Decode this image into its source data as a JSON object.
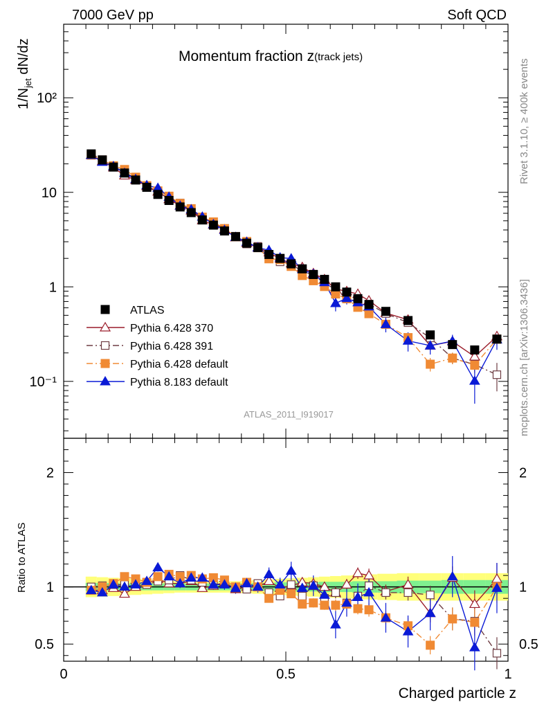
{
  "header": {
    "left": "7000 GeV pp",
    "right": "Soft QCD"
  },
  "side_text": {
    "rivet": "Rivet 3.1.10, ≥ 400k events",
    "mcplots": "mcplots.cern.ch [arXiv:1306.3436]"
  },
  "chart_data": {
    "type": "scatter",
    "title_main": "Momentum fraction z",
    "title_sub": "(track jets)",
    "analysis_id": "ATLAS_2011_I919017",
    "xlabel": "Charged particle z",
    "ylabel_main": "1/N",
    "ylabel_sub": "jet",
    "ylabel_tail": " dN/dz",
    "ylabel_ratio": "Ratio to ATLAS",
    "xlim": [
      0,
      1.0
    ],
    "ylim_main": [
      0.025,
      600
    ],
    "ylim_ratio": [
      0.35,
      2.3
    ],
    "x_ticks": [
      "0",
      "0.5",
      "1"
    ],
    "y_ticks_main": [
      "10⁻¹",
      "1",
      "10",
      "10²"
    ],
    "y_ticks_ratio": [
      "0.5",
      "1",
      "2"
    ],
    "colors": {
      "data": "#000000",
      "p370": "#9a1c2a",
      "p391": "#6e3d43",
      "p6def": "#f08a34",
      "p8": "#0a1ad6",
      "band_inner": "#7ff08f",
      "band_outer": "#ffff7a"
    },
    "legend": [
      {
        "key": "data",
        "label": "ATLAS"
      },
      {
        "key": "p370",
        "label": "Pythia 6.428 370"
      },
      {
        "key": "p391",
        "label": "Pythia 6.428 391"
      },
      {
        "key": "p6def",
        "label": "Pythia 6.428 default"
      },
      {
        "key": "p8",
        "label": "Pythia 8.183 default"
      }
    ],
    "x": [
      0.062,
      0.087,
      0.112,
      0.137,
      0.162,
      0.187,
      0.212,
      0.237,
      0.262,
      0.287,
      0.312,
      0.337,
      0.362,
      0.387,
      0.412,
      0.437,
      0.462,
      0.487,
      0.512,
      0.537,
      0.562,
      0.587,
      0.612,
      0.637,
      0.662,
      0.687,
      0.725,
      0.775,
      0.825,
      0.875,
      0.925,
      0.975
    ],
    "data_values": [
      25.5,
      22.0,
      18.5,
      16.0,
      13.5,
      11.3,
      9.5,
      8.2,
      7.0,
      6.1,
      5.1,
      4.5,
      3.9,
      3.4,
      2.9,
      2.6,
      2.2,
      2.0,
      1.75,
      1.55,
      1.35,
      1.2,
      1.0,
      0.88,
      0.75,
      0.65,
      0.55,
      0.44,
      0.31,
      0.245,
      0.215,
      0.28
    ],
    "band_inner": [
      0.035,
      0.035,
      0.035,
      0.03,
      0.03,
      0.03,
      0.03,
      0.03,
      0.03,
      0.03,
      0.03,
      0.03,
      0.03,
      0.03,
      0.03,
      0.035,
      0.035,
      0.04,
      0.04,
      0.04,
      0.04,
      0.045,
      0.045,
      0.045,
      0.05,
      0.05,
      0.05,
      0.055,
      0.055,
      0.06,
      0.06,
      0.06
    ],
    "band_outer": [
      0.09,
      0.085,
      0.08,
      0.075,
      0.07,
      0.065,
      0.06,
      0.055,
      0.05,
      0.05,
      0.05,
      0.05,
      0.05,
      0.05,
      0.055,
      0.06,
      0.065,
      0.07,
      0.075,
      0.08,
      0.085,
      0.09,
      0.095,
      0.1,
      0.105,
      0.11,
      0.115,
      0.12,
      0.12,
      0.12,
      0.12,
      0.12
    ],
    "series": [
      {
        "key": "p370",
        "name": "Pythia 6.428 370",
        "marker": "triangle-open",
        "dash": "",
        "ratio": [
          0.97,
          0.97,
          0.99,
          0.94,
          1.0,
          1.03,
          1.07,
          1.03,
          1.03,
          1.05,
          0.99,
          1.01,
          1.04,
          0.98,
          1.0,
          1.0,
          1.05,
          0.99,
          1.01,
          1.04,
          1.03,
          1.0,
          0.95,
          1.02,
          1.12,
          1.1,
          0.96,
          1.02,
          0.77,
          1.08,
          0.85,
          1.07
        ],
        "ratio_err": [
          0.02,
          0.02,
          0.02,
          0.02,
          0.02,
          0.02,
          0.02,
          0.02,
          0.02,
          0.02,
          0.02,
          0.025,
          0.025,
          0.025,
          0.03,
          0.03,
          0.03,
          0.03,
          0.035,
          0.035,
          0.04,
          0.04,
          0.05,
          0.05,
          0.05,
          0.06,
          0.06,
          0.07,
          0.08,
          0.1,
          0.12,
          0.14
        ]
      },
      {
        "key": "p391",
        "name": "Pythia 6.428 391",
        "marker": "square-open",
        "dash": "9,4,2,4",
        "ratio": [
          1.0,
          1.01,
          1.02,
          1.02,
          1.04,
          1.02,
          1.05,
          1.06,
          1.1,
          1.06,
          1.04,
          1.06,
          1.04,
          0.99,
          0.98,
          1.03,
          0.95,
          0.92,
          1.02,
          0.92,
          1.01,
          0.9,
          0.95,
          0.86,
          0.92,
          1.01,
          0.95,
          0.95,
          0.93,
          0.72,
          0.7,
          0.42
        ],
        "ratio_err": [
          0.02,
          0.02,
          0.02,
          0.02,
          0.02,
          0.02,
          0.02,
          0.02,
          0.02,
          0.02,
          0.02,
          0.025,
          0.025,
          0.025,
          0.03,
          0.03,
          0.03,
          0.03,
          0.035,
          0.035,
          0.04,
          0.04,
          0.05,
          0.05,
          0.05,
          0.06,
          0.06,
          0.07,
          0.08,
          0.1,
          0.12,
          0.14
        ]
      },
      {
        "key": "p6def",
        "name": "Pythia 6.428 default",
        "marker": "square-filled",
        "dash": "9,4,2,4",
        "ratio": [
          0.97,
          1.0,
          1.03,
          1.09,
          1.07,
          1.04,
          1.09,
          1.11,
          1.09,
          1.1,
          1.07,
          1.08,
          1.06,
          1.0,
          1.04,
          1.0,
          0.9,
          0.97,
          0.94,
          0.85,
          0.86,
          0.84,
          0.84,
          0.85,
          0.81,
          0.8,
          0.73,
          0.66,
          0.49,
          0.72,
          0.69,
          1.0
        ],
        "ratio_err": [
          0.02,
          0.02,
          0.02,
          0.02,
          0.02,
          0.02,
          0.02,
          0.02,
          0.02,
          0.02,
          0.02,
          0.025,
          0.025,
          0.025,
          0.03,
          0.03,
          0.03,
          0.03,
          0.035,
          0.035,
          0.04,
          0.04,
          0.05,
          0.05,
          0.05,
          0.06,
          0.06,
          0.07,
          0.08,
          0.1,
          0.12,
          0.14
        ]
      },
      {
        "key": "p8",
        "name": "Pythia 8.183 default",
        "marker": "triangle-filled",
        "dash": "",
        "ratio": [
          0.97,
          0.95,
          1.02,
          1.0,
          1.02,
          1.05,
          1.17,
          1.09,
          1.03,
          1.08,
          1.08,
          1.02,
          1.02,
          0.99,
          1.03,
          1.0,
          1.11,
          1.02,
          1.14,
          0.99,
          1.01,
          0.93,
          0.67,
          0.86,
          0.91,
          0.95,
          0.73,
          0.61,
          0.77,
          1.09,
          0.47,
          0.99
        ],
        "ratio_err": [
          0.03,
          0.03,
          0.03,
          0.03,
          0.03,
          0.035,
          0.035,
          0.035,
          0.04,
          0.04,
          0.04,
          0.045,
          0.045,
          0.05,
          0.05,
          0.05,
          0.06,
          0.06,
          0.08,
          0.08,
          0.09,
          0.1,
          0.12,
          0.12,
          0.12,
          0.13,
          0.13,
          0.14,
          0.15,
          0.18,
          0.2,
          0.22
        ]
      }
    ]
  }
}
